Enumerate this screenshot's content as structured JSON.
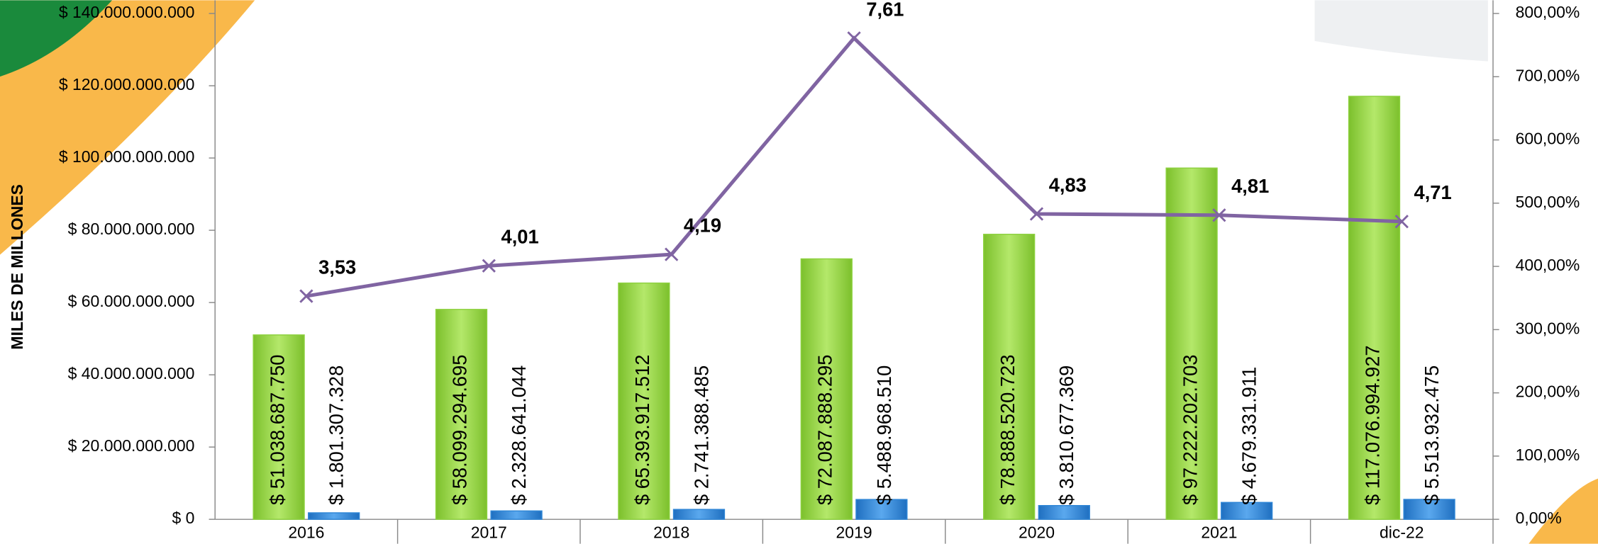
{
  "chart_data": {
    "type": "bar",
    "y_title": "MILES DE MILLONES",
    "categories": [
      "2016",
      "2017",
      "2018",
      "2019",
      "2020",
      "2021",
      "dic-22"
    ],
    "series": [
      {
        "type": "bar",
        "color": "#8dd13f",
        "values": [
          51038687750,
          58099294695,
          65393917512,
          72087888295,
          78888520723,
          97222202703,
          117076994927
        ],
        "value_labels": [
          "$ 51.038.687.750",
          "$ 58.099.294.695",
          "$ 65.393.917.512",
          "$ 72.087.888.295",
          "$ 78.888.520.723",
          "$ 97.222.202.703",
          "$ 117.076.994.927"
        ]
      },
      {
        "type": "bar",
        "color": "#2f86d6",
        "values": [
          1801307328,
          2328641044,
          2741388485,
          5488968510,
          3810677369,
          4679331911,
          5513932475
        ],
        "value_labels": [
          "$ 1.801.307.328",
          "$ 2.328.641.044",
          "$ 2.741.388.485",
          "$ 5.488.968.510",
          "$ 3.810.677.369",
          "$ 4.679.331.911",
          "$ 5.513.932.475"
        ]
      },
      {
        "type": "line",
        "axis": "y2",
        "color": "#8064a2",
        "values": [
          353,
          401,
          419,
          761,
          483,
          481,
          471
        ],
        "value_labels": [
          "3,53",
          "4,01",
          "4,19",
          "7,61",
          "4,83",
          "4,81",
          "4,71"
        ]
      }
    ],
    "ylim": [
      0,
      140000000000
    ],
    "yticks": [
      {
        "value": 0,
        "label": "$ 0"
      },
      {
        "value": 20000000000,
        "label": "$ 20.000.000.000"
      },
      {
        "value": 40000000000,
        "label": "$ 40.000.000.000"
      },
      {
        "value": 60000000000,
        "label": "$ 60.000.000.000"
      },
      {
        "value": 80000000000,
        "label": "$ 80.000.000.000"
      },
      {
        "value": 100000000000,
        "label": "$ 100.000.000.000"
      },
      {
        "value": 120000000000,
        "label": "$ 120.000.000.000"
      },
      {
        "value": 140000000000,
        "label": "$ 140.000.000.000"
      }
    ],
    "y2lim": [
      0,
      800
    ],
    "y2ticks": [
      {
        "value": 0,
        "label": "0,00%"
      },
      {
        "value": 100,
        "label": "100,00%"
      },
      {
        "value": 200,
        "label": "200,00%"
      },
      {
        "value": 300,
        "label": "300,00%"
      },
      {
        "value": 400,
        "label": "400,00%"
      },
      {
        "value": 500,
        "label": "500,00%"
      },
      {
        "value": 600,
        "label": "600,00%"
      },
      {
        "value": 700,
        "label": "700,00%"
      },
      {
        "value": 800,
        "label": "800,00%"
      }
    ]
  }
}
